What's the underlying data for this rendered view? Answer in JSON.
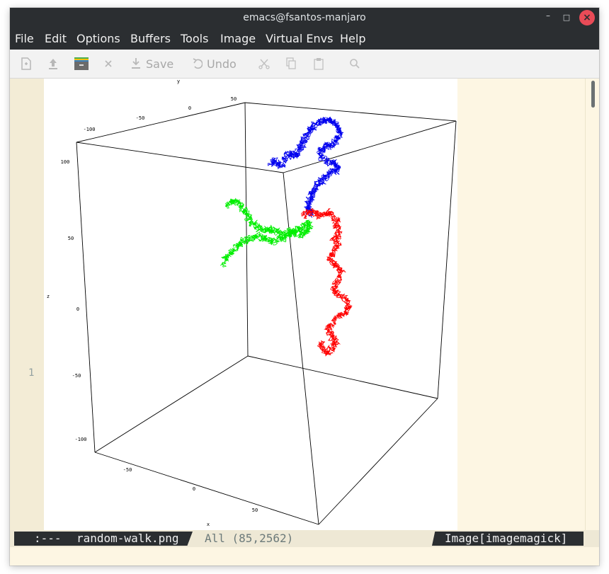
{
  "window": {
    "title": "emacs@fsantos-manjaro",
    "controls": {
      "minimize": "–",
      "maximize": "□",
      "close": "×"
    }
  },
  "menu": [
    "File",
    "Edit",
    "Options",
    "Buffers",
    "Tools",
    "Image",
    "Virtual Envs",
    "Help"
  ],
  "toolbar": {
    "save_label": "Save",
    "undo_label": "Undo",
    "icons": [
      "new-file-icon",
      "upload-icon",
      "folder-icon",
      "close-icon",
      "save-icon",
      "undo-icon",
      "cut-icon",
      "copy-icon",
      "paste-icon",
      "search-icon"
    ]
  },
  "buffer": {
    "line_number": "1"
  },
  "chart_data": {
    "type": "scatter3d",
    "axis_names": {
      "x": "x",
      "y": "y",
      "z": "z"
    },
    "x_ticks": [
      "-50",
      "0",
      "50"
    ],
    "y_ticks": [
      "-100",
      "-50",
      "0",
      "50"
    ],
    "z_ticks": [
      "100",
      "50",
      "0",
      "-50",
      "-100"
    ],
    "series": [
      {
        "color": "#0000ee",
        "path": [
          [
            0.1,
            0.4
          ],
          [
            0.13,
            0.38
          ],
          [
            0.16,
            0.42
          ],
          [
            0.2,
            0.37
          ],
          [
            0.24,
            0.33
          ],
          [
            0.27,
            0.35
          ],
          [
            0.3,
            0.3
          ],
          [
            0.33,
            0.26
          ],
          [
            0.35,
            0.22
          ],
          [
            0.38,
            0.16
          ],
          [
            0.41,
            0.13
          ],
          [
            0.45,
            0.1
          ],
          [
            0.5,
            0.09
          ],
          [
            0.54,
            0.1
          ],
          [
            0.57,
            0.13
          ],
          [
            0.59,
            0.17
          ],
          [
            0.57,
            0.22
          ],
          [
            0.54,
            0.26
          ],
          [
            0.51,
            0.28
          ],
          [
            0.47,
            0.29
          ],
          [
            0.45,
            0.33
          ],
          [
            0.48,
            0.37
          ],
          [
            0.53,
            0.39
          ],
          [
            0.58,
            0.41
          ],
          [
            0.56,
            0.45
          ],
          [
            0.52,
            0.47
          ],
          [
            0.49,
            0.5
          ],
          [
            0.45,
            0.53
          ],
          [
            0.42,
            0.57
          ],
          [
            0.4,
            0.61
          ],
          [
            0.38,
            0.65
          ],
          [
            0.36,
            0.69
          ],
          [
            0.37,
            0.73
          ],
          [
            0.4,
            0.76
          ]
        ]
      },
      {
        "color": "#ff0000",
        "path": [
          [
            0.33,
            0.76
          ],
          [
            0.38,
            0.74
          ],
          [
            0.43,
            0.77
          ],
          [
            0.48,
            0.74
          ],
          [
            0.53,
            0.76
          ],
          [
            0.57,
            0.79
          ],
          [
            0.56,
            0.84
          ],
          [
            0.59,
            0.89
          ],
          [
            0.55,
            0.93
          ],
          [
            0.58,
            0.98
          ],
          [
            0.54,
            1.03
          ],
          [
            0.52,
            1.08
          ],
          [
            0.56,
            1.12
          ],
          [
            0.6,
            1.16
          ],
          [
            0.58,
            1.22
          ],
          [
            0.54,
            1.27
          ],
          [
            0.57,
            1.32
          ],
          [
            0.62,
            1.36
          ],
          [
            0.66,
            1.4
          ],
          [
            0.63,
            1.45
          ],
          [
            0.58,
            1.48
          ],
          [
            0.54,
            1.52
          ],
          [
            0.5,
            1.57
          ],
          [
            0.53,
            1.62
          ],
          [
            0.57,
            1.66
          ],
          [
            0.54,
            1.7
          ],
          [
            0.5,
            1.74
          ],
          [
            0.47,
            1.71
          ],
          [
            0.46,
            1.66
          ]
        ]
      },
      {
        "color": "#00ee00",
        "path": [
          [
            -0.2,
            0.7
          ],
          [
            -0.16,
            0.66
          ],
          [
            -0.12,
            0.68
          ],
          [
            -0.09,
            0.73
          ],
          [
            -0.06,
            0.77
          ],
          [
            -0.03,
            0.81
          ],
          [
            0.01,
            0.85
          ],
          [
            0.05,
            0.87
          ],
          [
            0.1,
            0.86
          ],
          [
            0.15,
            0.88
          ],
          [
            0.2,
            0.9
          ],
          [
            0.25,
            0.88
          ],
          [
            0.3,
            0.91
          ],
          [
            0.34,
            0.89
          ],
          [
            0.38,
            0.86
          ],
          [
            0.36,
            0.82
          ],
          [
            0.32,
            0.85
          ],
          [
            0.27,
            0.88
          ],
          [
            0.21,
            0.91
          ],
          [
            0.16,
            0.93
          ],
          [
            0.11,
            0.95
          ],
          [
            0.06,
            0.93
          ],
          [
            0.01,
            0.91
          ],
          [
            -0.04,
            0.93
          ],
          [
            -0.09,
            0.95
          ],
          [
            -0.13,
            0.98
          ],
          [
            -0.17,
            1.02
          ],
          [
            -0.21,
            1.06
          ],
          [
            -0.24,
            1.1
          ]
        ]
      }
    ]
  },
  "modeline": {
    "status": ":---",
    "buffer_name": "random-walk.png",
    "position": "All (85,2562)",
    "mode": "Image[imagemagick]"
  }
}
